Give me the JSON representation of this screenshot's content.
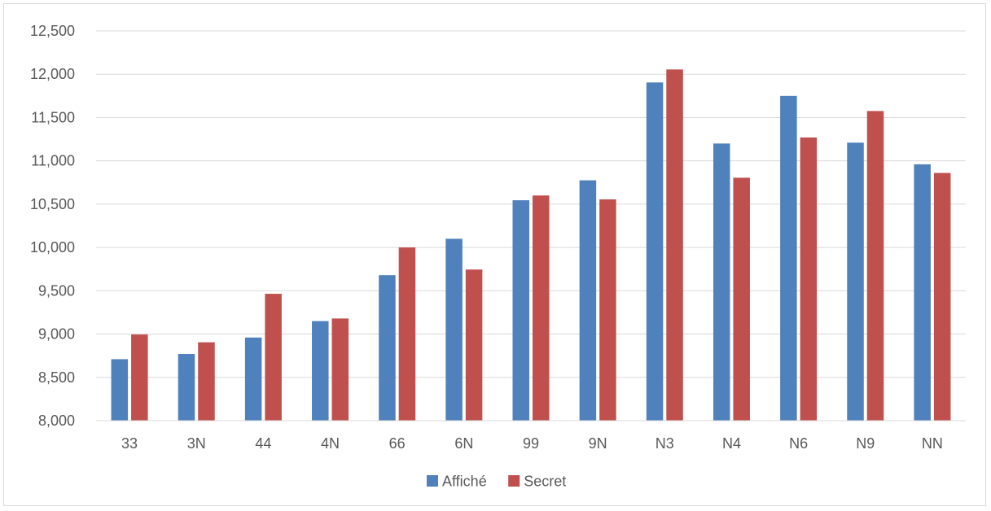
{
  "chart_data": {
    "type": "bar",
    "categories": [
      "33",
      "3N",
      "44",
      "4N",
      "66",
      "6N",
      "99",
      "9N",
      "N3",
      "N4",
      "N6",
      "N9",
      "NN"
    ],
    "series": [
      {
        "name": "Affiché",
        "color": "#4f81bd",
        "values": [
          8710,
          8770,
          8960,
          9150,
          9680,
          10100,
          10545,
          10775,
          11905,
          11200,
          11750,
          11210,
          10960
        ]
      },
      {
        "name": "Secret",
        "color": "#c0504d",
        "values": [
          8995,
          8905,
          9465,
          9180,
          10000,
          9745,
          10600,
          10555,
          12055,
          10805,
          11270,
          11575,
          10860
        ]
      }
    ],
    "y_ticks": [
      "8,000",
      "8,500",
      "9,000",
      "9,500",
      "10,000",
      "10,500",
      "11,000",
      "11,500",
      "12,000",
      "12,500"
    ],
    "ylim": [
      8000,
      12500
    ],
    "title": "",
    "xlabel": "",
    "ylabel": "",
    "grid": true,
    "legend_position": "bottom"
  }
}
